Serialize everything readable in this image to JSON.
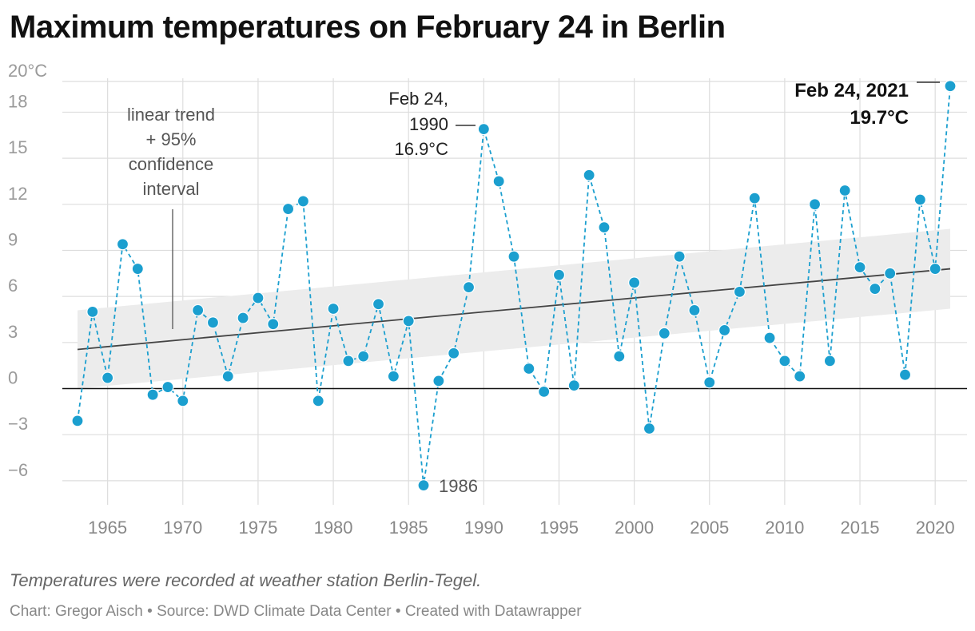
{
  "title": "Maximum temperatures on February 24 in Berlin",
  "note": "Temperatures were recorded at weather station Berlin-Tegel.",
  "footer": {
    "byline": "Chart: Gregor Aisch",
    "source": "Source: DWD Climate Data Center",
    "tool": "Created with Datawrapper",
    "separator": " • "
  },
  "colors": {
    "series": "#1b9fcf",
    "trend": "#444444",
    "band": "#ececec",
    "grid": "#dddddd",
    "zero": "#111111"
  },
  "annotations": {
    "trend_label": [
      "linear trend",
      "+ 95%",
      "confidence",
      "interval"
    ],
    "peak_1990": [
      "Feb 24,",
      "1990",
      "16.9°C"
    ],
    "low_1986": "1986",
    "record_2021": [
      "Feb 24, 2021",
      "19.7°C"
    ]
  },
  "chart_data": {
    "type": "line",
    "title": "Maximum temperatures on February 24 in Berlin",
    "xlabel": "",
    "ylabel": "",
    "unit": "°C",
    "xlim": [
      1963,
      2021
    ],
    "ylim": [
      -7,
      20
    ],
    "yticks": [
      20,
      18,
      15,
      12,
      9,
      6,
      3,
      0,
      -3,
      -6
    ],
    "ytick_labels": [
      "20°C",
      "18",
      "15",
      "12",
      "9",
      "6",
      "3",
      "0",
      "−3",
      "−6"
    ],
    "xticks": [
      1965,
      1970,
      1975,
      1980,
      1985,
      1990,
      1995,
      2000,
      2005,
      2010,
      2015,
      2020
    ],
    "series": [
      {
        "name": "Maximum temperature",
        "x": [
          1963,
          1964,
          1965,
          1966,
          1967,
          1968,
          1969,
          1970,
          1971,
          1972,
          1973,
          1974,
          1975,
          1976,
          1977,
          1978,
          1979,
          1980,
          1981,
          1982,
          1983,
          1984,
          1985,
          1986,
          1987,
          1988,
          1989,
          1990,
          1991,
          1992,
          1993,
          1994,
          1995,
          1996,
          1997,
          1998,
          1999,
          2000,
          2001,
          2002,
          2003,
          2004,
          2005,
          2006,
          2007,
          2008,
          2009,
          2010,
          2011,
          2012,
          2013,
          2014,
          2015,
          2016,
          2017,
          2018,
          2019,
          2020,
          2021
        ],
        "values": [
          -2.1,
          5.0,
          0.7,
          9.4,
          7.8,
          -0.4,
          0.1,
          -0.8,
          5.1,
          4.3,
          0.8,
          4.6,
          5.9,
          4.2,
          11.7,
          12.2,
          -0.8,
          5.2,
          1.8,
          2.1,
          5.5,
          0.8,
          4.4,
          -6.3,
          0.5,
          2.3,
          6.6,
          16.9,
          13.5,
          8.6,
          1.3,
          -0.2,
          7.4,
          0.2,
          13.9,
          10.5,
          2.1,
          6.9,
          -2.6,
          3.6,
          8.6,
          5.1,
          0.4,
          3.8,
          6.3,
          12.4,
          3.3,
          1.8,
          0.8,
          12.0,
          1.8,
          12.9,
          7.9,
          6.5,
          7.5,
          0.9,
          12.3,
          7.8,
          19.7
        ]
      }
    ],
    "trend": {
      "x": [
        1963,
        2021
      ],
      "y": [
        2.55,
        7.8
      ]
    },
    "confidence_band": {
      "x": [
        1963,
        2021
      ],
      "lower": [
        0.0,
        5.2
      ],
      "upper": [
        5.1,
        10.4
      ]
    }
  }
}
